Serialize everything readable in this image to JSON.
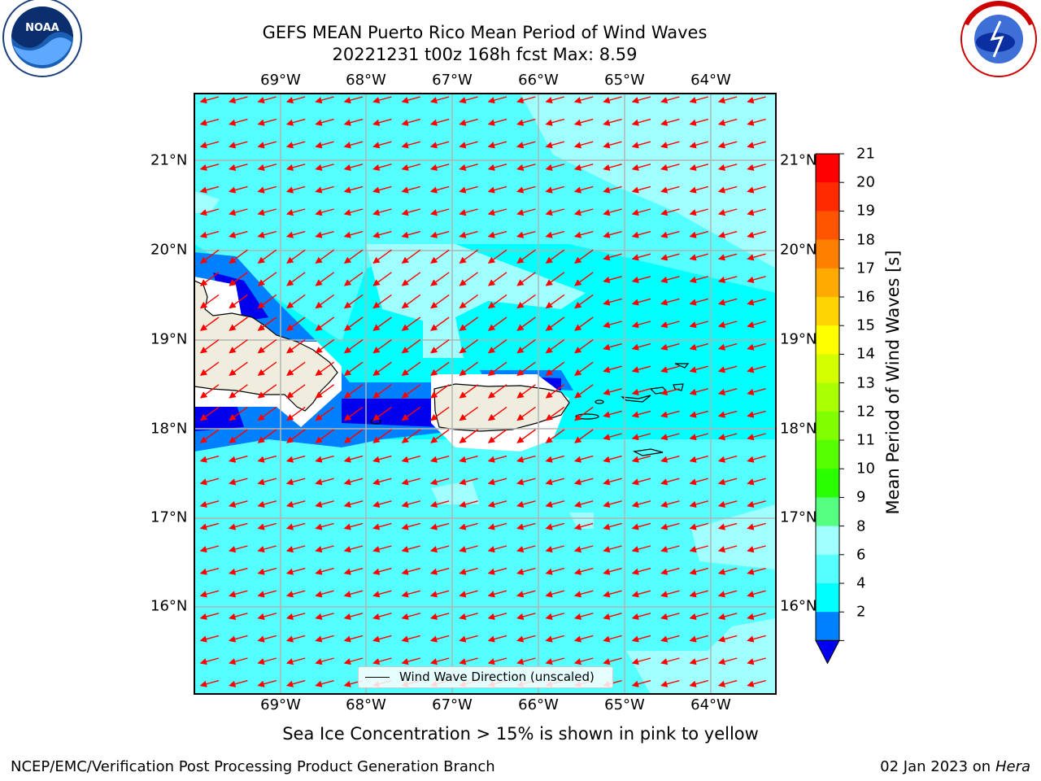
{
  "title": {
    "line1": "GEFS MEAN Puerto Rico Mean Period of Wind Waves",
    "line2": "20221231 t00z 168h fcst   Max: 8.59"
  },
  "map": {
    "lon_labels": [
      "69°W",
      "68°W",
      "67°W",
      "66°W",
      "65°W",
      "64°W"
    ],
    "lat_labels": [
      "21°N",
      "20°N",
      "19°N",
      "18°N",
      "17°N",
      "16°N"
    ],
    "legend": "Wind Wave Direction (unscaled)",
    "arrow_color": "#ff0000",
    "ocean_color": "#00ffff",
    "land_color": "#efedde"
  },
  "colorbar": {
    "title": "Mean Period of Wind Waves [s]",
    "ticks": [
      "21",
      "20",
      "19",
      "18",
      "17",
      "16",
      "15",
      "14",
      "13",
      "12",
      "11",
      "10",
      "9",
      "8",
      "6",
      "4",
      "2"
    ],
    "colors": [
      "#ff0000",
      "#ff2a00",
      "#ff5500",
      "#ff8000",
      "#ffaa00",
      "#ffd400",
      "#ffff00",
      "#d4ff00",
      "#aaff00",
      "#80ff00",
      "#55ff00",
      "#2aff00",
      "#55ff80",
      "#a0ffff",
      "#55ffff",
      "#00ffff",
      "#0080ff"
    ],
    "extend_color": "#0000ee"
  },
  "footnote": "Sea Ice Concentration > 15% is shown in pink to yellow",
  "credit": "NCEP/EMC/Verification Post Processing Product Generation Branch",
  "date_prefix": "02 Jan 2023 on",
  "machine": "Hera",
  "logos": {
    "left": "NOAA",
    "right": "NATIONAL WEATHER SERVICE"
  }
}
